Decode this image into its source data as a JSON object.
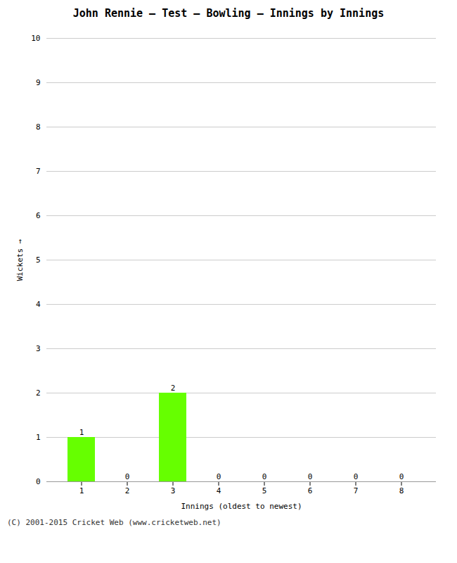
{
  "chart_data": {
    "type": "bar",
    "title": "John Rennie – Test – Bowling – Innings by Innings",
    "xlabel": "Innings (oldest to newest)",
    "ylabel": "Wickets",
    "categories": [
      1,
      2,
      3,
      4,
      5,
      6,
      7,
      8
    ],
    "values": [
      1,
      0,
      2,
      0,
      0,
      0,
      0,
      0
    ],
    "color": "#66ff00",
    "ylim": [
      0,
      10
    ],
    "yticks": [
      0,
      1,
      2,
      3,
      4,
      5,
      6,
      7,
      8,
      9,
      10
    ],
    "grid": true,
    "data_labels": true,
    "annotations": [
      "(C) 2001-2015 Cricket Web (www.cricketweb.net)"
    ]
  }
}
